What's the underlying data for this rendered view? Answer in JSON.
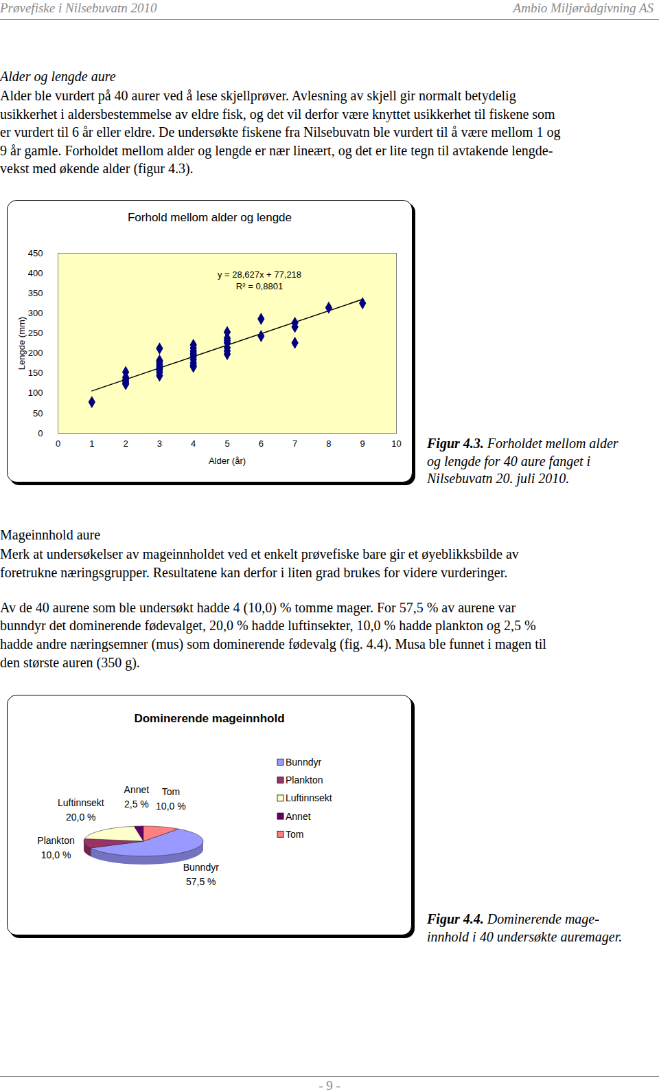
{
  "header": {
    "left": "Prøvefiske i Nilsebuvatn 2010",
    "right": "Ambio Miljørådgivning AS"
  },
  "sections": [
    {
      "heading": "Alder og lengde aure",
      "paragraphs": [
        [
          "Alder ble vurdert på 40 aurer ved å lese skjellprøver. Avlesning av skjell gir normalt betydelig",
          "usikkerhet i aldersbestemmelse av eldre fisk, og det vil derfor være knyttet usikkerhet til fiskene som",
          "er vurdert til 6 år eller eldre. De undersøkte fiskene fra Nilsebuvatn ble vurdert til å være mellom 1 og",
          "9 år gamle. Forholdet mellom alder og lengde er nær lineært, og det er lite tegn til avtakende lengde-",
          "vekst med økende alder (figur 4.3)."
        ]
      ]
    },
    {
      "heading": "Mageinnhold aure",
      "paragraphs": [
        [
          "Merk at undersøkelser av mageinnholdet ved et enkelt prøvefiske bare gir et øyeblikksbilde av",
          "foretrukne næringsgrupper. Resultatene kan derfor i liten grad brukes for videre vurderinger."
        ],
        [
          "Av de 40 aurene som ble undersøkt hadde 4 (10,0) % tomme mager. For 57,5 % av aurene var",
          "bunndyr det dominerende fødevalget, 20,0 % hadde luftinsekter, 10,0 % hadde plankton og 2,5 %",
          "hadde andre næringsemner (mus) som dominerende fødevalg (fig. 4.4). Musa ble funnet i magen til",
          "den største auren (350 g)."
        ]
      ]
    }
  ],
  "chart_data": [
    {
      "type": "scatter",
      "title": "Forhold mellom alder og lengde",
      "x_label": "Alder (år)",
      "y_label": "Lengde (mm)",
      "x": [
        1,
        2,
        2,
        2,
        2,
        2,
        2,
        3,
        3,
        3,
        3,
        3,
        3,
        3,
        3,
        3,
        4,
        4,
        4,
        4,
        4,
        4,
        4,
        4,
        4,
        4,
        5,
        5,
        5,
        5,
        5,
        5,
        5,
        6,
        6,
        7,
        7,
        7,
        8,
        9
      ],
      "values": [
        78,
        153,
        140,
        135,
        130,
        126,
        123,
        212,
        182,
        178,
        172,
        166,
        162,
        158,
        152,
        144,
        221,
        213,
        206,
        200,
        196,
        191,
        184,
        176,
        170,
        166,
        253,
        238,
        232,
        226,
        214,
        206,
        198,
        286,
        243,
        276,
        266,
        226,
        314,
        325
      ],
      "color": "#000080",
      "marker": "diamond",
      "xlim": [
        0,
        10
      ],
      "xticks": [
        0,
        1,
        2,
        3,
        4,
        5,
        6,
        7,
        8,
        9,
        10
      ],
      "ylim": [
        0,
        450
      ],
      "yticks": [
        0,
        50,
        100,
        150,
        200,
        250,
        300,
        350,
        400,
        450
      ],
      "grid": false,
      "trendline": {
        "slope": 28.627,
        "intercept": 77.218,
        "label": "y = 28,627x + 77,218",
        "r2_label": "R² = 0,8801"
      }
    },
    {
      "type": "pie",
      "title": "Dominerende mageinnhold",
      "categories": [
        "Bunndyr",
        "Plankton",
        "Luftinnsekt",
        "Annet",
        "Tom"
      ],
      "values": [
        57.5,
        10.0,
        20.0,
        2.5,
        10.0
      ],
      "value_labels": [
        "57,5 %",
        "10,0 %",
        "20,0 %",
        "2,5 %",
        "10,0 %"
      ],
      "colors": [
        "#9999ff",
        "#993366",
        "#ffffcc",
        "#660066",
        "#ff8080"
      ],
      "legend": "right",
      "data_labels": true
    }
  ],
  "captions": [
    {
      "label": "Figur 4.3.",
      "lines": [
        " Forholdet mellom alder",
        "og lengde for 40 aure fanget i",
        "Nilsebuvatn 20. juli 2010."
      ]
    },
    {
      "label": "Figur 4.4.",
      "lines": [
        " Dominerende mage-",
        "innhold i 40 undersøkte auremager."
      ]
    }
  ],
  "footer": "- 9 -"
}
